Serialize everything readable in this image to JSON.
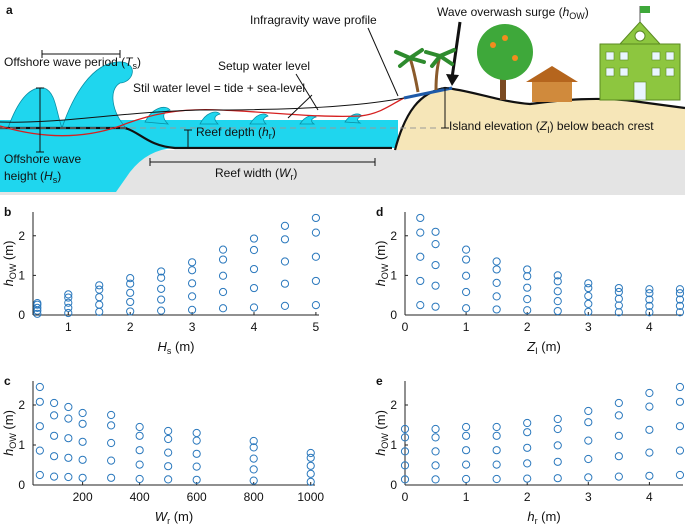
{
  "diagram": {
    "panel_label": "a",
    "labels": {
      "wave_period": [
        "Offshore wave period (",
        "T",
        "s",
        ")"
      ],
      "infragravity": "Infragravity wave profile",
      "overwash": [
        "Wave overwash surge (",
        "h",
        "OW",
        ")"
      ],
      "setup": "Setup water level",
      "still": "Stil water level = tide + sea-level",
      "reef_depth": [
        "Reef depth (",
        "h",
        "r",
        ")"
      ],
      "island": [
        "Island elevation (",
        "Z",
        "I",
        ") below beach crest"
      ],
      "wave_height": [
        "Offshore wave",
        "height (",
        "H",
        "s",
        ")"
      ],
      "reef_width": [
        "Reef width (",
        "W",
        "r",
        ")"
      ]
    }
  },
  "chart_data": [
    {
      "type": "scatter",
      "label": "b",
      "color": "#2a78bd",
      "xlabel": [
        "H",
        "s",
        " (m)"
      ],
      "ylabel": [
        "h",
        "OW",
        " (m)"
      ],
      "xlim": [
        0.43,
        5.05
      ],
      "ylim": [
        0,
        2.6
      ],
      "xticks": [
        1,
        2,
        3,
        4,
        5
      ],
      "yticks": [
        0,
        1,
        2
      ],
      "x": [
        0.5,
        0.5,
        0.5,
        0.5,
        0.5,
        1,
        1,
        1,
        1,
        1,
        1.5,
        1.5,
        1.5,
        1.5,
        1.5,
        2,
        2,
        2,
        2,
        2,
        2.5,
        2.5,
        2.5,
        2.5,
        2.5,
        3,
        3,
        3,
        3,
        3,
        3.5,
        3.5,
        3.5,
        3.5,
        3.5,
        4,
        4,
        4,
        4,
        4,
        4.5,
        4.5,
        4.5,
        4.5,
        4.5,
        5,
        5,
        5,
        5,
        5
      ],
      "y": [
        0.03,
        0.11,
        0.18,
        0.26,
        0.3,
        0.05,
        0.18,
        0.31,
        0.44,
        0.52,
        0.08,
        0.26,
        0.45,
        0.64,
        0.75,
        0.09,
        0.33,
        0.56,
        0.79,
        0.93,
        0.11,
        0.39,
        0.66,
        0.94,
        1.1,
        0.13,
        0.47,
        0.8,
        1.13,
        1.33,
        0.17,
        0.58,
        0.99,
        1.4,
        1.65,
        0.19,
        0.68,
        1.16,
        1.64,
        1.93,
        0.23,
        0.79,
        1.35,
        1.91,
        2.25,
        0.25,
        0.86,
        1.47,
        2.08,
        2.45
      ]
    },
    {
      "type": "scatter",
      "label": "d",
      "color": "#2a78bd",
      "xlabel": [
        "Z",
        "I",
        " (m)"
      ],
      "ylabel": [
        "h",
        "OW",
        " (m)"
      ],
      "xlim": [
        0,
        4.55
      ],
      "ylim": [
        0,
        2.6
      ],
      "xticks": [
        0,
        1,
        2,
        3,
        4
      ],
      "yticks": [
        0,
        1,
        2
      ],
      "x": [
        0.25,
        0.25,
        0.25,
        0.25,
        0.25,
        0.5,
        0.5,
        0.5,
        0.5,
        0.5,
        1,
        1,
        1,
        1,
        1,
        1.5,
        1.5,
        1.5,
        1.5,
        1.5,
        2,
        2,
        2,
        2,
        2,
        2.5,
        2.5,
        2.5,
        2.5,
        2.5,
        3,
        3,
        3,
        3,
        3,
        3.5,
        3.5,
        3.5,
        3.5,
        3.5,
        4,
        4,
        4,
        4,
        4,
        4.5,
        4.5,
        4.5,
        4.5,
        4.5
      ],
      "y": [
        0.25,
        0.86,
        1.47,
        2.08,
        2.45,
        0.21,
        0.74,
        1.26,
        1.79,
        2.1,
        0.17,
        0.58,
        0.99,
        1.4,
        1.65,
        0.14,
        0.47,
        0.81,
        1.15,
        1.35,
        0.12,
        0.4,
        0.69,
        0.98,
        1.15,
        0.1,
        0.35,
        0.6,
        0.85,
        1.0,
        0.08,
        0.28,
        0.48,
        0.68,
        0.8,
        0.07,
        0.24,
        0.41,
        0.58,
        0.68,
        0.07,
        0.23,
        0.39,
        0.55,
        0.65,
        0.07,
        0.23,
        0.39,
        0.55,
        0.65
      ]
    },
    {
      "type": "scatter",
      "label": "c",
      "color": "#2a78bd",
      "xlabel": [
        "W",
        "r",
        " (m)"
      ],
      "ylabel": [
        "h",
        "OW",
        " (m)"
      ],
      "xlim": [
        26,
        1015
      ],
      "ylim": [
        0,
        2.6
      ],
      "xticks": [
        200,
        400,
        600,
        800,
        1000
      ],
      "yticks": [
        0,
        1,
        2
      ],
      "x": [
        50,
        50,
        50,
        50,
        50,
        100,
        100,
        100,
        100,
        100,
        150,
        150,
        150,
        150,
        150,
        200,
        200,
        200,
        200,
        200,
        300,
        300,
        300,
        300,
        300,
        400,
        400,
        400,
        400,
        400,
        500,
        500,
        500,
        500,
        500,
        600,
        600,
        600,
        600,
        600,
        800,
        800,
        800,
        800,
        800,
        1000,
        1000,
        1000,
        1000,
        1000
      ],
      "y": [
        0.25,
        0.86,
        1.47,
        2.08,
        2.45,
        0.21,
        0.72,
        1.23,
        1.74,
        2.05,
        0.2,
        0.68,
        1.17,
        1.66,
        1.95,
        0.18,
        0.63,
        1.08,
        1.53,
        1.8,
        0.18,
        0.61,
        1.05,
        1.49,
        1.75,
        0.15,
        0.51,
        0.87,
        1.23,
        1.45,
        0.14,
        0.47,
        0.81,
        1.15,
        1.35,
        0.13,
        0.46,
        0.78,
        1.11,
        1.3,
        0.11,
        0.39,
        0.66,
        0.94,
        1.1,
        0.08,
        0.28,
        0.48,
        0.68,
        0.8
      ]
    },
    {
      "type": "scatter",
      "label": "e",
      "color": "#2a78bd",
      "xlabel": [
        "h",
        "r",
        " (m)"
      ],
      "ylabel": [
        "h",
        "OW",
        " (m)"
      ],
      "xlim": [
        0,
        4.55
      ],
      "ylim": [
        0,
        2.6
      ],
      "xticks": [
        0,
        1,
        2,
        3,
        4
      ],
      "yticks": [
        0,
        1,
        2
      ],
      "x": [
        0,
        0,
        0,
        0,
        0,
        0.5,
        0.5,
        0.5,
        0.5,
        0.5,
        1,
        1,
        1,
        1,
        1,
        1.5,
        1.5,
        1.5,
        1.5,
        1.5,
        2,
        2,
        2,
        2,
        2,
        2.5,
        2.5,
        2.5,
        2.5,
        2.5,
        3,
        3,
        3,
        3,
        3,
        3.5,
        3.5,
        3.5,
        3.5,
        3.5,
        4,
        4,
        4,
        4,
        4,
        4.5,
        4.5,
        4.5,
        4.5,
        4.5
      ],
      "y": [
        0.14,
        0.49,
        0.84,
        1.19,
        1.4,
        0.14,
        0.49,
        0.84,
        1.19,
        1.4,
        0.15,
        0.51,
        0.87,
        1.23,
        1.45,
        0.15,
        0.51,
        0.87,
        1.23,
        1.45,
        0.16,
        0.54,
        0.93,
        1.32,
        1.55,
        0.17,
        0.58,
        0.99,
        1.4,
        1.65,
        0.19,
        0.65,
        1.11,
        1.57,
        1.85,
        0.21,
        0.72,
        1.23,
        1.74,
        2.05,
        0.23,
        0.81,
        1.38,
        1.96,
        2.3,
        0.25,
        0.86,
        1.47,
        2.08,
        2.45
      ]
    }
  ]
}
